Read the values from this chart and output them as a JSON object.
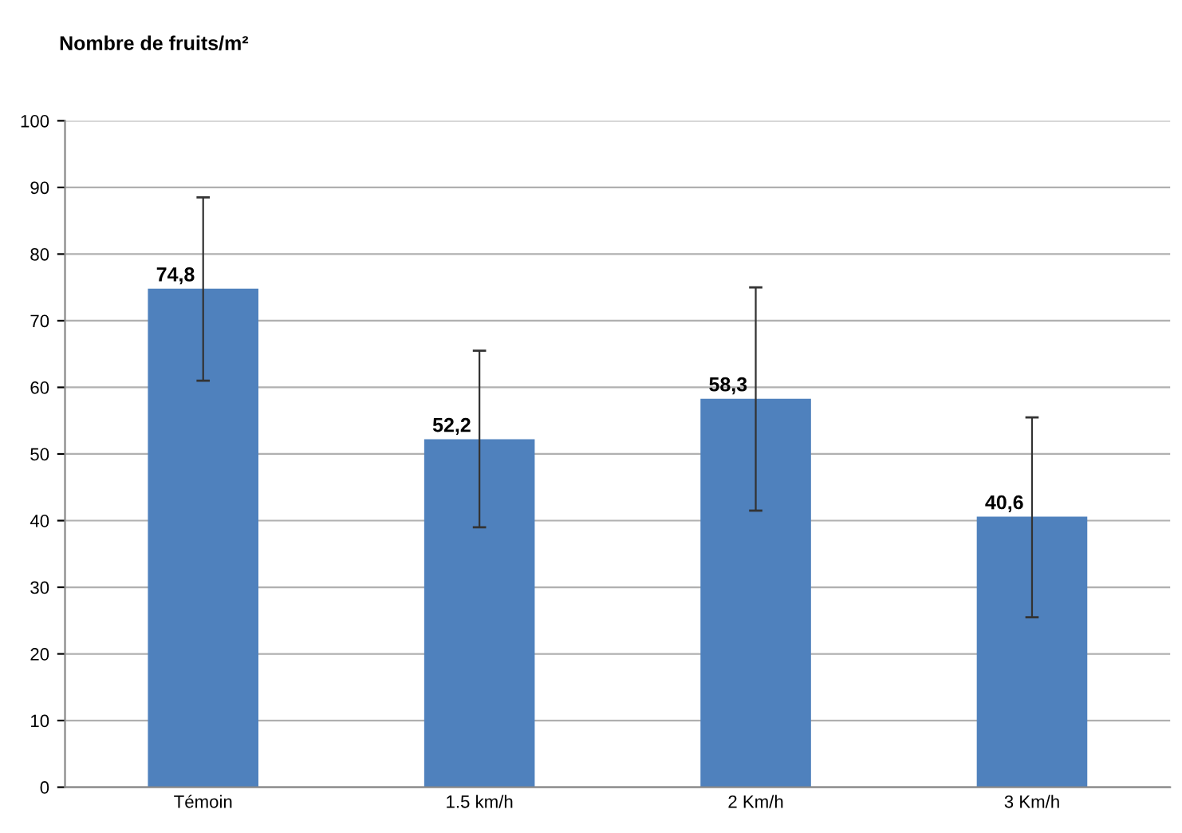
{
  "chart_data": {
    "type": "bar",
    "title": "Nombre de fruits/m²",
    "categories": [
      "Témoin",
      "1.5 km/h",
      "2 Km/h",
      "3 Km/h"
    ],
    "values": [
      74.8,
      52.2,
      58.3,
      40.6
    ],
    "value_labels": [
      "74,8",
      "52,2",
      "58,3",
      "40,6"
    ],
    "errors": [
      [
        61,
        88.5
      ],
      [
        39,
        65.5
      ],
      [
        41.5,
        75
      ],
      [
        25.5,
        55.5
      ]
    ],
    "color": "#4f81bd",
    "ylim": [
      0,
      100
    ],
    "yticks": [
      0,
      10,
      20,
      30,
      40,
      50,
      60,
      70,
      80,
      90,
      100
    ],
    "grid": "y"
  }
}
